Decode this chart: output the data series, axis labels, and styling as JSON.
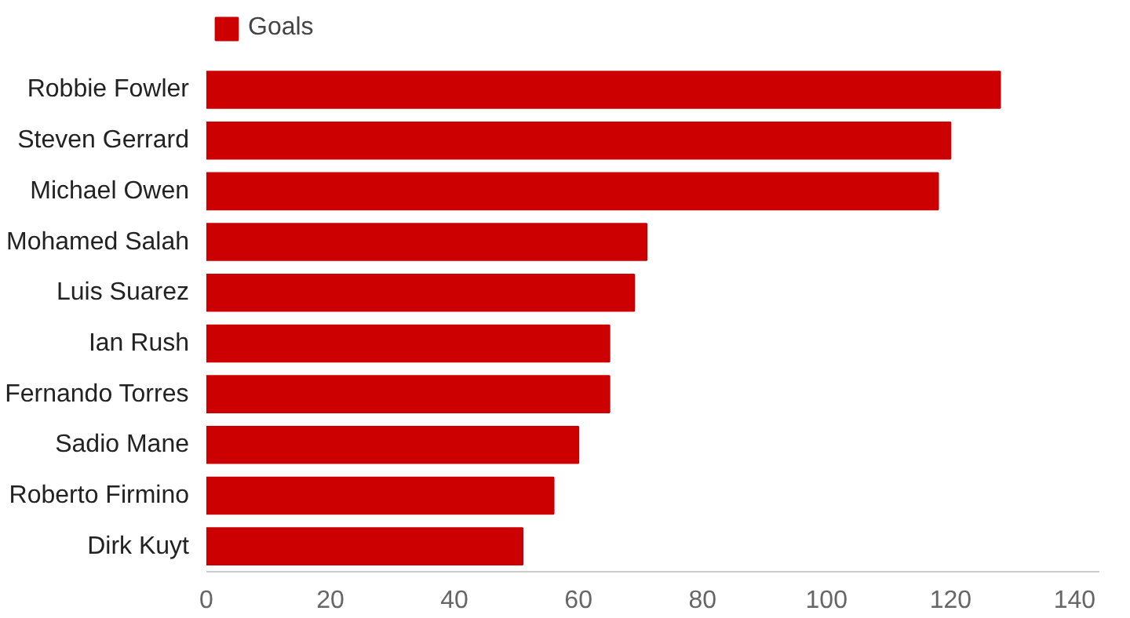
{
  "chart_data": {
    "type": "bar",
    "orientation": "horizontal",
    "categories": [
      "Robbie Fowler",
      "Steven Gerrard",
      "Michael Owen",
      "Mohamed Salah",
      "Luis Suarez",
      "Ian Rush",
      "Fernando Torres",
      "Sadio Mane",
      "Roberto Firmino",
      "Dirk Kuyt"
    ],
    "series": [
      {
        "name": "Goals",
        "color": "#cc0000",
        "values": [
          128,
          120,
          118,
          71,
          69,
          65,
          65,
          60,
          56,
          51
        ]
      }
    ],
    "xlim": [
      0,
      144
    ],
    "xticks": [
      0,
      20,
      40,
      60,
      80,
      100,
      120,
      140
    ],
    "grid": false,
    "legend": "top left"
  }
}
